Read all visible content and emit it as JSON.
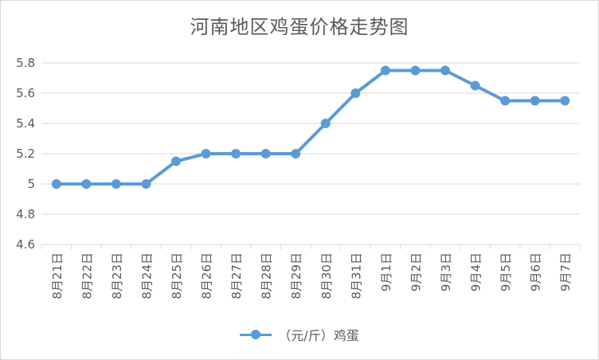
{
  "chart_data": {
    "type": "line",
    "title": "河南地区鸡蛋价格走势图",
    "categories": [
      "8月21日",
      "8月22日",
      "8月23日",
      "8月24日",
      "8月25日",
      "8月26日",
      "8月27日",
      "8月28日",
      "8月29日",
      "8月30日",
      "8月31日",
      "9月1日",
      "9月2日",
      "9月3日",
      "9月4日",
      "9月5日",
      "9月6日",
      "9月7日"
    ],
    "series": [
      {
        "name": "（元/斤）鸡蛋",
        "values": [
          5.0,
          5.0,
          5.0,
          5.0,
          5.15,
          5.2,
          5.2,
          5.2,
          5.2,
          5.4,
          5.6,
          5.75,
          5.75,
          5.75,
          5.65,
          5.55,
          5.55,
          5.55
        ]
      }
    ],
    "yticks": [
      "4.6",
      "4.8",
      "5",
      "5.2",
      "5.4",
      "5.6",
      "5.8"
    ],
    "ylim": [
      4.6,
      5.8
    ],
    "grid": true,
    "legend_position": "bottom",
    "colors": {
      "series": "#5b9bd5",
      "grid": "#d9d9d9",
      "text": "#595959"
    }
  }
}
